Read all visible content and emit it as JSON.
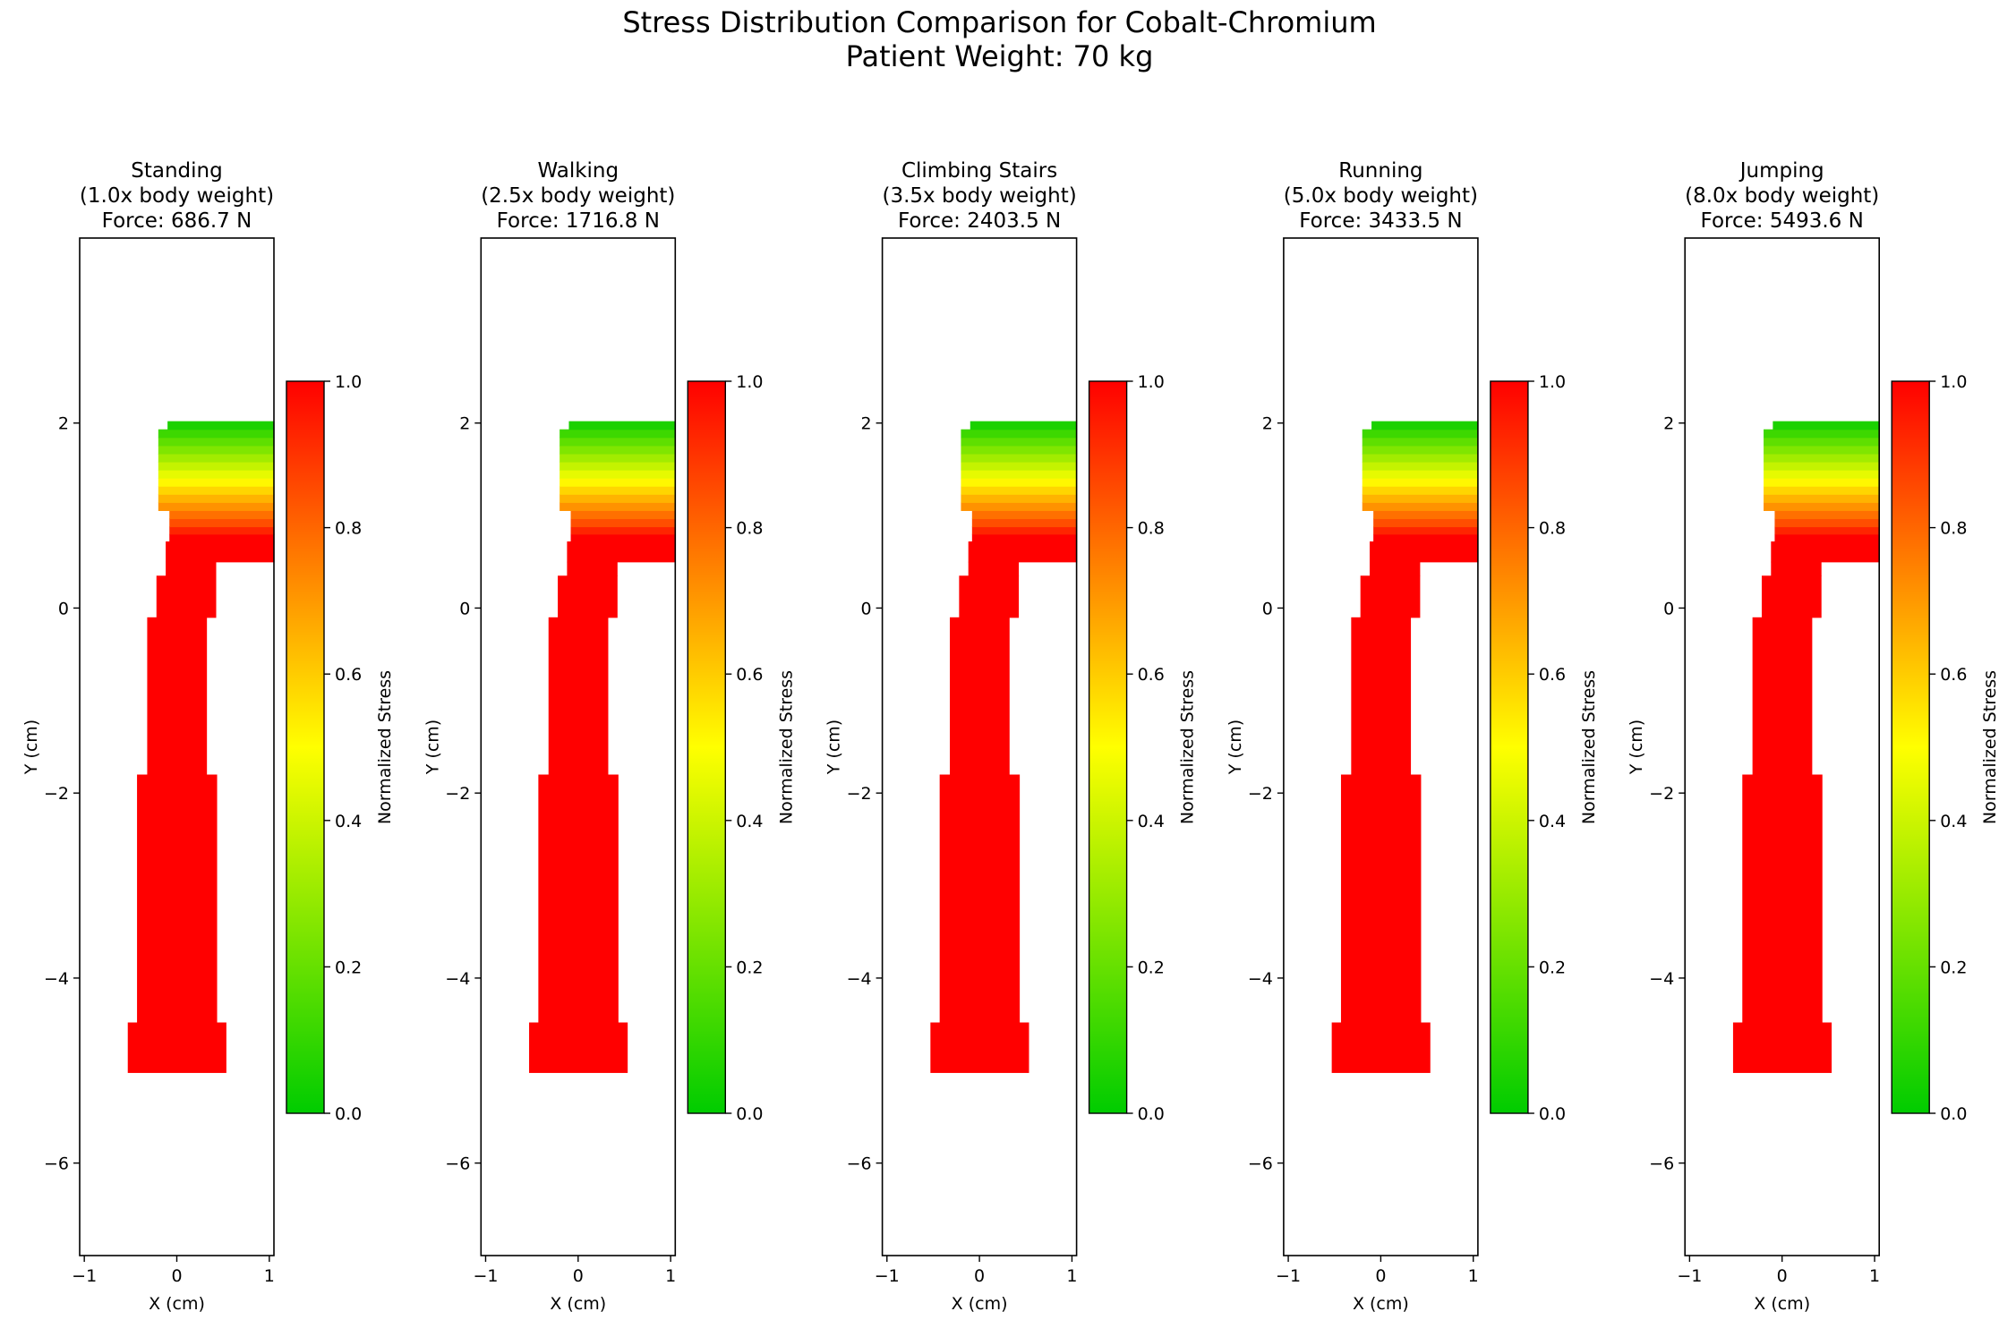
{
  "figure": {
    "suptitle_line1": "Stress Distribution Comparison for Cobalt-Chromium",
    "suptitle_line2": "Patient Weight: 70 kg"
  },
  "chart_data": [
    {
      "type": "heatmap",
      "title_lines": [
        "Standing",
        "(1.0x body weight)",
        "Force: 686.7 N"
      ],
      "xlabel": "X (cm)",
      "ylabel": "Y (cm)",
      "xlim": [
        -1.05,
        1.05
      ],
      "ylim": [
        -7.0,
        4.0
      ],
      "xticks": [
        -1,
        0,
        1
      ],
      "yticks": [
        -6,
        -4,
        -2,
        0,
        2
      ],
      "colorbar": {
        "label": "Normalized Stress",
        "range": [
          0.0,
          1.0
        ],
        "ticks": [
          "0.0",
          "0.2",
          "0.4",
          "0.6",
          "0.8",
          "1.0"
        ],
        "colors": [
          "#00cc00",
          "#ffff00",
          "#ff0000"
        ]
      }
    },
    {
      "type": "heatmap",
      "title_lines": [
        "Walking",
        "(2.5x body weight)",
        "Force: 1716.8 N"
      ],
      "xlabel": "X (cm)",
      "ylabel": "Y (cm)",
      "xlim": [
        -1.05,
        1.05
      ],
      "ylim": [
        -7.0,
        4.0
      ],
      "xticks": [
        -1,
        0,
        1
      ],
      "yticks": [
        -6,
        -4,
        -2,
        0,
        2
      ],
      "colorbar": {
        "label": "Normalized Stress",
        "range": [
          0.0,
          1.0
        ],
        "ticks": [
          "0.0",
          "0.2",
          "0.4",
          "0.6",
          "0.8",
          "1.0"
        ],
        "colors": [
          "#00cc00",
          "#ffff00",
          "#ff0000"
        ]
      }
    },
    {
      "type": "heatmap",
      "title_lines": [
        "Climbing Stairs",
        "(3.5x body weight)",
        "Force: 2403.5 N"
      ],
      "xlabel": "X (cm)",
      "ylabel": "Y (cm)",
      "xlim": [
        -1.05,
        1.05
      ],
      "ylim": [
        -7.0,
        4.0
      ],
      "xticks": [
        -1,
        0,
        1
      ],
      "yticks": [
        -6,
        -4,
        -2,
        0,
        2
      ],
      "colorbar": {
        "label": "Normalized Stress",
        "range": [
          0.0,
          1.0
        ],
        "ticks": [
          "0.0",
          "0.2",
          "0.4",
          "0.6",
          "0.8",
          "1.0"
        ],
        "colors": [
          "#00cc00",
          "#ffff00",
          "#ff0000"
        ]
      }
    },
    {
      "type": "heatmap",
      "title_lines": [
        "Running",
        "(5.0x body weight)",
        "Force: 3433.5 N"
      ],
      "xlabel": "X (cm)",
      "ylabel": "Y (cm)",
      "xlim": [
        -1.05,
        1.05
      ],
      "ylim": [
        -7.0,
        4.0
      ],
      "xticks": [
        -1,
        0,
        1
      ],
      "yticks": [
        -6,
        -4,
        -2,
        0,
        2
      ],
      "colorbar": {
        "label": "Normalized Stress",
        "range": [
          0.0,
          1.0
        ],
        "ticks": [
          "0.0",
          "0.2",
          "0.4",
          "0.6",
          "0.8",
          "1.0"
        ],
        "colors": [
          "#00cc00",
          "#ffff00",
          "#ff0000"
        ]
      }
    },
    {
      "type": "heatmap",
      "title_lines": [
        "Jumping",
        "(8.0x body weight)",
        "Force: 5493.6 N"
      ],
      "xlabel": "X (cm)",
      "ylabel": "Y (cm)",
      "xlim": [
        -1.05,
        1.05
      ],
      "ylim": [
        -7.0,
        4.0
      ],
      "xticks": [
        -1,
        0,
        1
      ],
      "yticks": [
        -6,
        -4,
        -2,
        0,
        2
      ],
      "colorbar": {
        "label": "Normalized Stress",
        "range": [
          0.0,
          1.0
        ],
        "ticks": [
          "0.0",
          "0.2",
          "0.4",
          "0.6",
          "0.8",
          "1.0"
        ],
        "colors": [
          "#00cc00",
          "#ffff00",
          "#ff0000"
        ]
      }
    }
  ]
}
